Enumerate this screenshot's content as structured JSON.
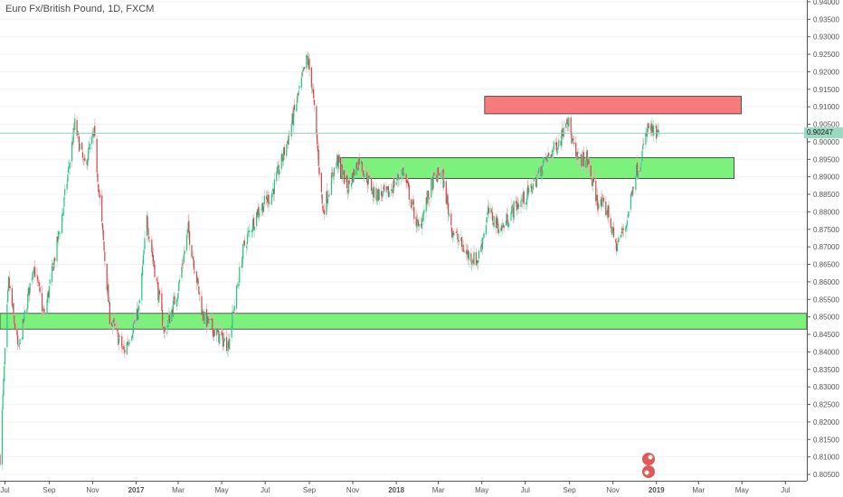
{
  "title": "Euro Fx/British Pound, 1D, FXCM",
  "current_price_label": "0.90247",
  "colors": {
    "up": "#26c281",
    "down": "#d0454c",
    "resistance_zone": "#f77b7b",
    "support_zone": "#7cf27c",
    "price_line": "#8fd3b8"
  },
  "chart_data": {
    "type": "candlestick",
    "title": "Euro Fx/British Pound, 1D, FXCM",
    "x_tick_labels": [
      "Jul",
      "Sep",
      "Nov",
      "2017",
      "Mar",
      "May",
      "Jul",
      "Sep",
      "Nov",
      "2018",
      "Mar",
      "May",
      "Jul",
      "Sep",
      "Nov",
      "2019",
      "Mar",
      "May",
      "Jul"
    ],
    "y_tick_labels": [
      "0.94000",
      "0.93500",
      "0.93000",
      "0.92500",
      "0.92000",
      "0.91500",
      "0.91000",
      "0.90500",
      "0.90000",
      "0.89500",
      "0.89000",
      "0.88500",
      "0.88000",
      "0.87500",
      "0.87000",
      "0.86500",
      "0.86000",
      "0.85500",
      "0.85000",
      "0.84500",
      "0.84000",
      "0.83500",
      "0.83000",
      "0.82500",
      "0.82000",
      "0.81500",
      "0.81000",
      "0.80500"
    ],
    "ylim": [
      0.8032,
      0.9405
    ],
    "current_price": 0.90247,
    "price_path": [
      [
        "2016-06-24",
        0.81
      ],
      [
        "2016-07-06",
        0.86
      ],
      [
        "2016-07-20",
        0.84
      ],
      [
        "2016-08-10",
        0.865
      ],
      [
        "2016-08-25",
        0.85
      ],
      [
        "2016-09-20",
        0.88
      ],
      [
        "2016-10-07",
        0.905
      ],
      [
        "2016-10-20",
        0.893
      ],
      [
        "2016-11-03",
        0.902
      ],
      [
        "2016-11-25",
        0.85
      ],
      [
        "2016-12-15",
        0.84
      ],
      [
        "2017-01-05",
        0.852
      ],
      [
        "2017-01-16",
        0.878
      ],
      [
        "2017-02-10",
        0.845
      ],
      [
        "2017-03-01",
        0.858
      ],
      [
        "2017-03-15",
        0.875
      ],
      [
        "2017-04-05",
        0.85
      ],
      [
        "2017-04-25",
        0.845
      ],
      [
        "2017-05-10",
        0.842
      ],
      [
        "2017-06-01",
        0.87
      ],
      [
        "2017-06-20",
        0.88
      ],
      [
        "2017-07-10",
        0.885
      ],
      [
        "2017-08-01",
        0.9
      ],
      [
        "2017-08-29",
        0.924
      ],
      [
        "2017-09-05",
        0.916
      ],
      [
        "2017-09-20",
        0.88
      ],
      [
        "2017-10-10",
        0.895
      ],
      [
        "2017-10-25",
        0.887
      ],
      [
        "2017-11-10",
        0.895
      ],
      [
        "2017-12-01",
        0.885
      ],
      [
        "2017-12-20",
        0.885
      ],
      [
        "2018-01-10",
        0.892
      ],
      [
        "2018-02-01",
        0.875
      ],
      [
        "2018-02-20",
        0.888
      ],
      [
        "2018-03-05",
        0.892
      ],
      [
        "2018-03-20",
        0.875
      ],
      [
        "2018-04-10",
        0.868
      ],
      [
        "2018-04-25",
        0.866
      ],
      [
        "2018-05-10",
        0.88
      ],
      [
        "2018-05-28",
        0.875
      ],
      [
        "2018-06-15",
        0.881
      ],
      [
        "2018-07-05",
        0.885
      ],
      [
        "2018-07-25",
        0.893
      ],
      [
        "2018-08-20",
        0.901
      ],
      [
        "2018-08-28",
        0.908
      ],
      [
        "2018-09-10",
        0.895
      ],
      [
        "2018-09-25",
        0.895
      ],
      [
        "2018-10-10",
        0.883
      ],
      [
        "2018-10-25",
        0.88
      ],
      [
        "2018-11-05",
        0.87
      ],
      [
        "2018-11-20",
        0.877
      ],
      [
        "2018-12-01",
        0.89
      ],
      [
        "2018-12-10",
        0.895
      ],
      [
        "2018-12-20",
        0.904
      ],
      [
        "2019-01-02",
        0.902
      ],
      [
        "2019-01-04",
        0.9025
      ]
    ],
    "zones": [
      {
        "type": "resistance",
        "from": "2018-05-05",
        "to": "2019-04-30",
        "low": 0.908,
        "high": 0.913
      },
      {
        "type": "support",
        "from": "2017-10-15",
        "to": "2019-04-20",
        "low": 0.8895,
        "high": 0.8955
      },
      {
        "type": "support",
        "from": "2016-06-24",
        "to": "2019-07-31",
        "low": 0.8465,
        "high": 0.851
      }
    ]
  }
}
